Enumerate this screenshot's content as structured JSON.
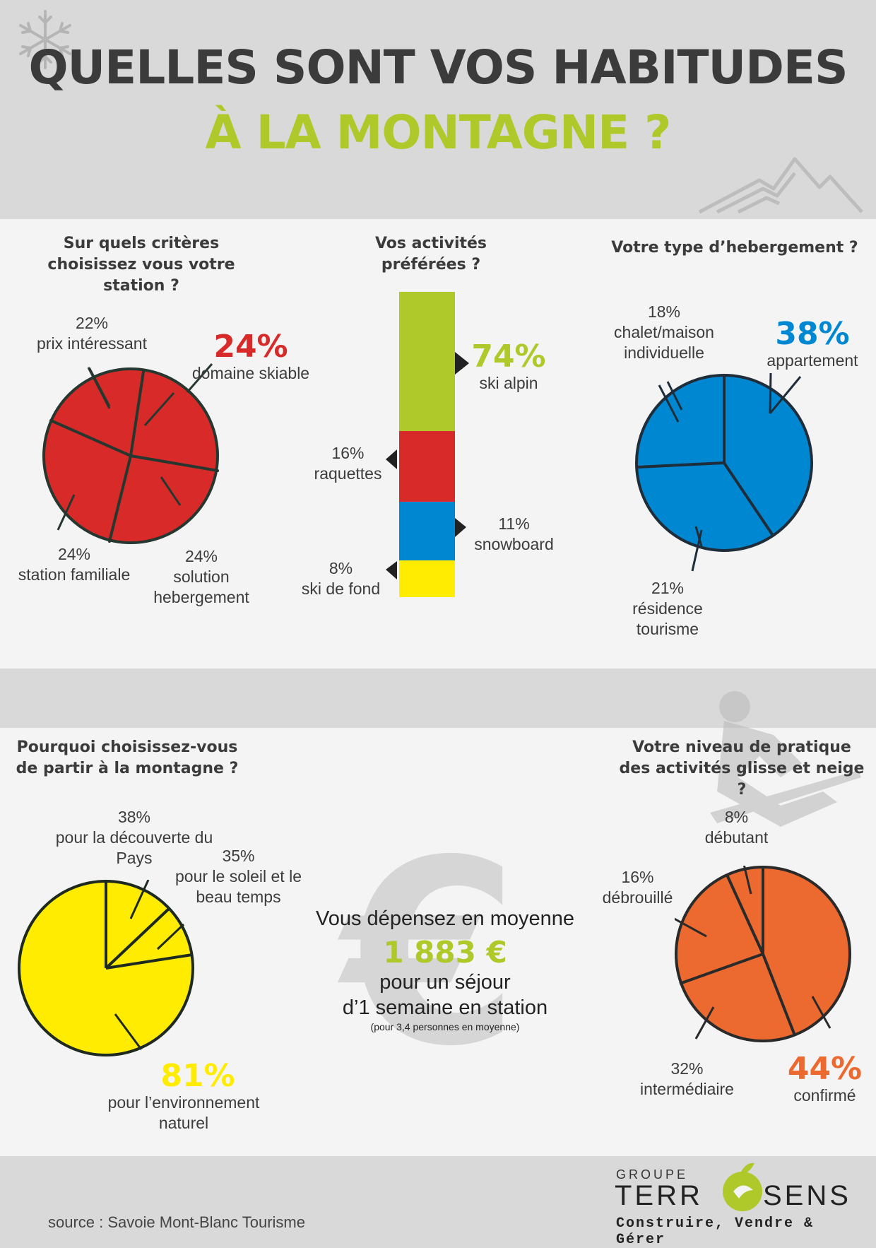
{
  "header": {
    "title_line1": "QUELLES SONT VOS HABITUDES",
    "title_line2": "À LA MONTAGNE ?",
    "icons": [
      "snowflake-icon",
      "mountain-icon"
    ]
  },
  "colors": {
    "green": "#afc92b",
    "red": "#d72a29",
    "blue": "#0087d2",
    "yellow": "#ffec00",
    "orange": "#ec6a30",
    "dark": "#3b3b3b"
  },
  "criteria": {
    "title": "Sur quels critères choisissez vous votre station ?",
    "items": [
      {
        "pct": "24%",
        "label": "domaine skiable"
      },
      {
        "pct": "24%",
        "label": "solution hebergement"
      },
      {
        "pct": "24%",
        "label": "station familiale"
      },
      {
        "pct": "22%",
        "label": "prix intéressant"
      }
    ]
  },
  "activities": {
    "title": "Vos activités préférées ?",
    "items": [
      {
        "pct": "74%",
        "label": "ski alpin"
      },
      {
        "pct": "16%",
        "label": "raquettes"
      },
      {
        "pct": "11%",
        "label": "snowboard"
      },
      {
        "pct": "8%",
        "label": "ski de fond"
      }
    ]
  },
  "lodging": {
    "title": "Votre type d’hebergement ?",
    "items": [
      {
        "pct": "38%",
        "label": "appartement"
      },
      {
        "pct": "21%",
        "label": "résidence tourisme"
      },
      {
        "pct": "18%",
        "label": "chalet/maison individuelle"
      }
    ]
  },
  "reasons": {
    "title": "Pourquoi choisissez-vous de partir à la montagne ?",
    "items": [
      {
        "pct": "81%",
        "label": "pour l’environnement naturel"
      },
      {
        "pct": "38%",
        "label": "pour la découverte du Pays"
      },
      {
        "pct": "35%",
        "label": "pour le soleil et le beau temps"
      }
    ]
  },
  "spending": {
    "line1": "Vous dépensez en moyenne",
    "amount": "1 883 €",
    "line2": "pour un séjour",
    "line3": "d’1 semaine en station",
    "note": "(pour 3,4 personnes en moyenne)",
    "icon": "euro-icon"
  },
  "level": {
    "title": "Votre niveau de pratique des activités glisse et neige ?",
    "items": [
      {
        "pct": "44%",
        "label": "confirmé"
      },
      {
        "pct": "32%",
        "label": "intermédiaire"
      },
      {
        "pct": "16%",
        "label": "débrouillé"
      },
      {
        "pct": "8%",
        "label": "débutant"
      }
    ],
    "icon": "skier-icon"
  },
  "footer": {
    "source": "source : Savoie Mont-Blanc Tourisme",
    "logo_groupe": "GROUPE",
    "logo_name_left": "TERR",
    "logo_name_right": "SENS",
    "logo_tagline": "Construire, Vendre & Gérer"
  },
  "chart_data": [
    {
      "type": "pie",
      "title": "Sur quels critères choisissez vous votre station ?",
      "categories": [
        "domaine skiable",
        "solution hebergement",
        "station familiale",
        "prix intéressant"
      ],
      "values": [
        24,
        24,
        24,
        22
      ]
    },
    {
      "type": "bar",
      "title": "Vos activités préférées ?",
      "categories": [
        "ski alpin",
        "raquettes",
        "snowboard",
        "ski de fond"
      ],
      "values": [
        74,
        16,
        11,
        8
      ]
    },
    {
      "type": "pie",
      "title": "Votre type d’hebergement ?",
      "categories": [
        "appartement",
        "résidence tourisme",
        "chalet/maison individuelle"
      ],
      "values": [
        38,
        21,
        18
      ]
    },
    {
      "type": "pie",
      "title": "Pourquoi choisissez-vous de partir à la montagne ?",
      "categories": [
        "pour l’environnement naturel",
        "pour la découverte du Pays",
        "pour le soleil et le beau temps"
      ],
      "values": [
        81,
        38,
        35
      ]
    },
    {
      "type": "pie",
      "title": "Votre niveau de pratique des activités glisse et neige ?",
      "categories": [
        "confirmé",
        "intermédiaire",
        "débrouillé",
        "débutant"
      ],
      "values": [
        44,
        32,
        16,
        8
      ]
    }
  ]
}
